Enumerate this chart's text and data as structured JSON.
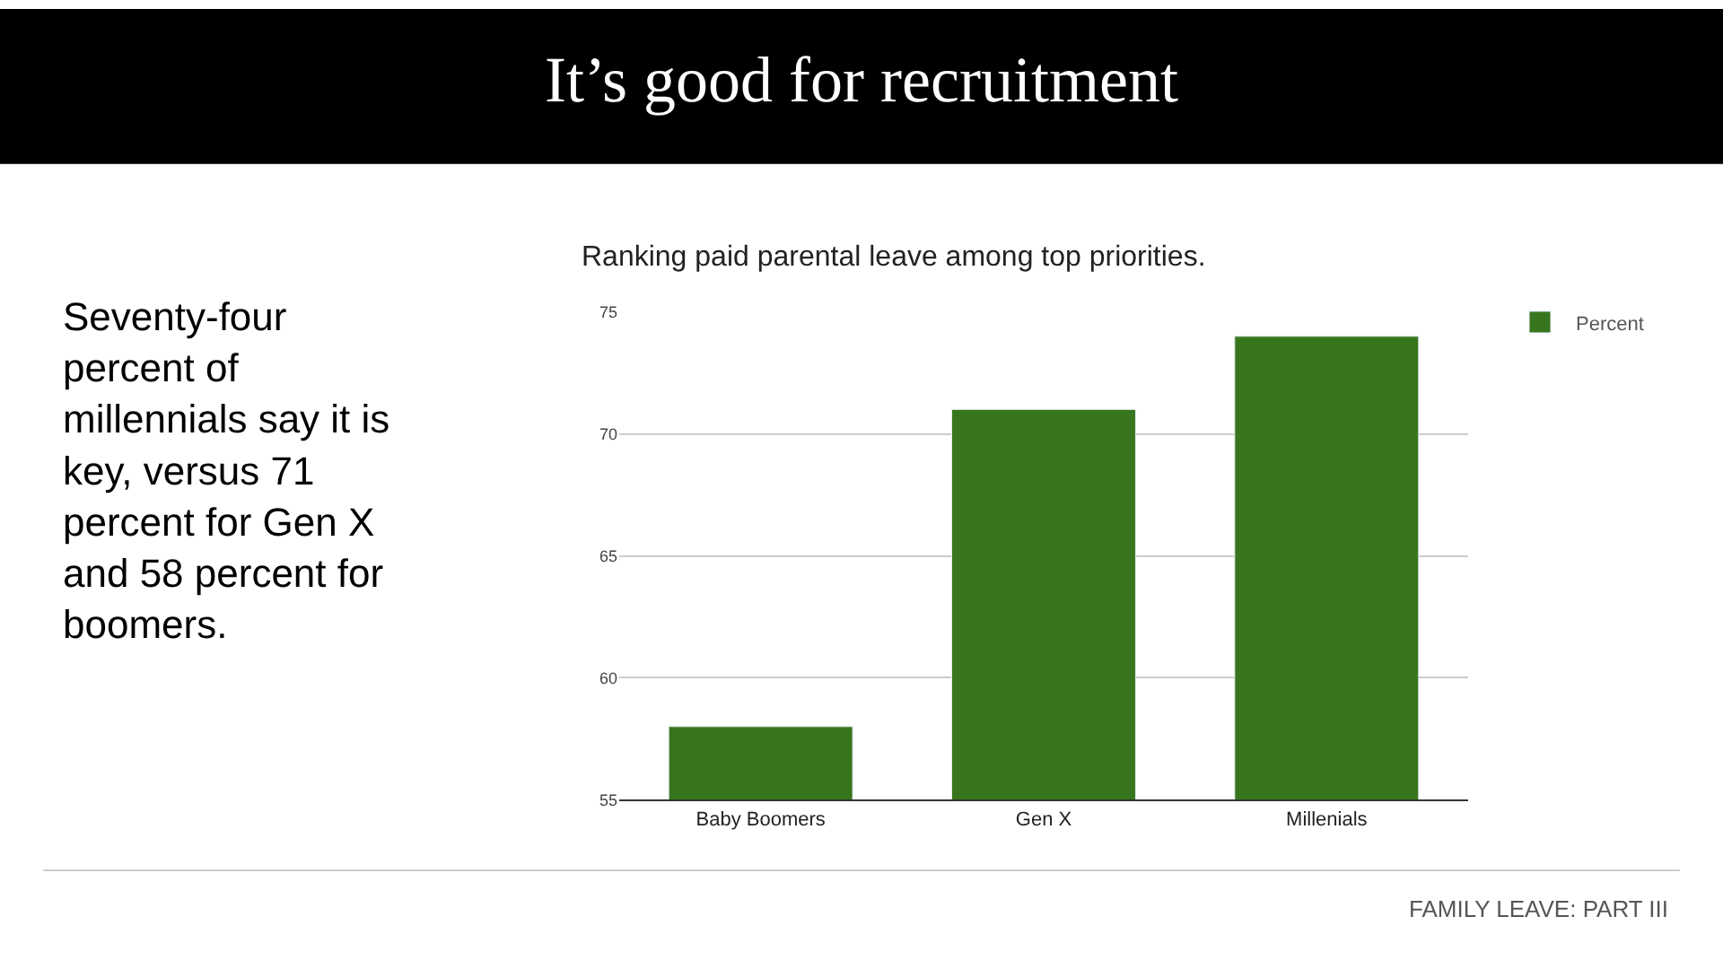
{
  "chart_data": {
    "type": "bar",
    "title": "It’s good for recruitment",
    "subtitle": "Ranking paid parental leave among top priorities.",
    "categories": [
      "Baby Boomers",
      "Gen X",
      "Millenials"
    ],
    "series": [
      {
        "name": "Percent",
        "color": "#38761d",
        "values": [
          58,
          71,
          74
        ]
      }
    ],
    "ylim": [
      55,
      75
    ],
    "yticks": [
      55,
      60,
      65,
      70,
      75
    ],
    "grid": "y",
    "legend": "top right",
    "annotations": [
      "Seventy-four\npercent of\nmillennials say it is\nkey, versus 71\npercent for Gen X\nand 58 percent for\nboomers.",
      "FAMILY LEAVE: PART III"
    ]
  }
}
